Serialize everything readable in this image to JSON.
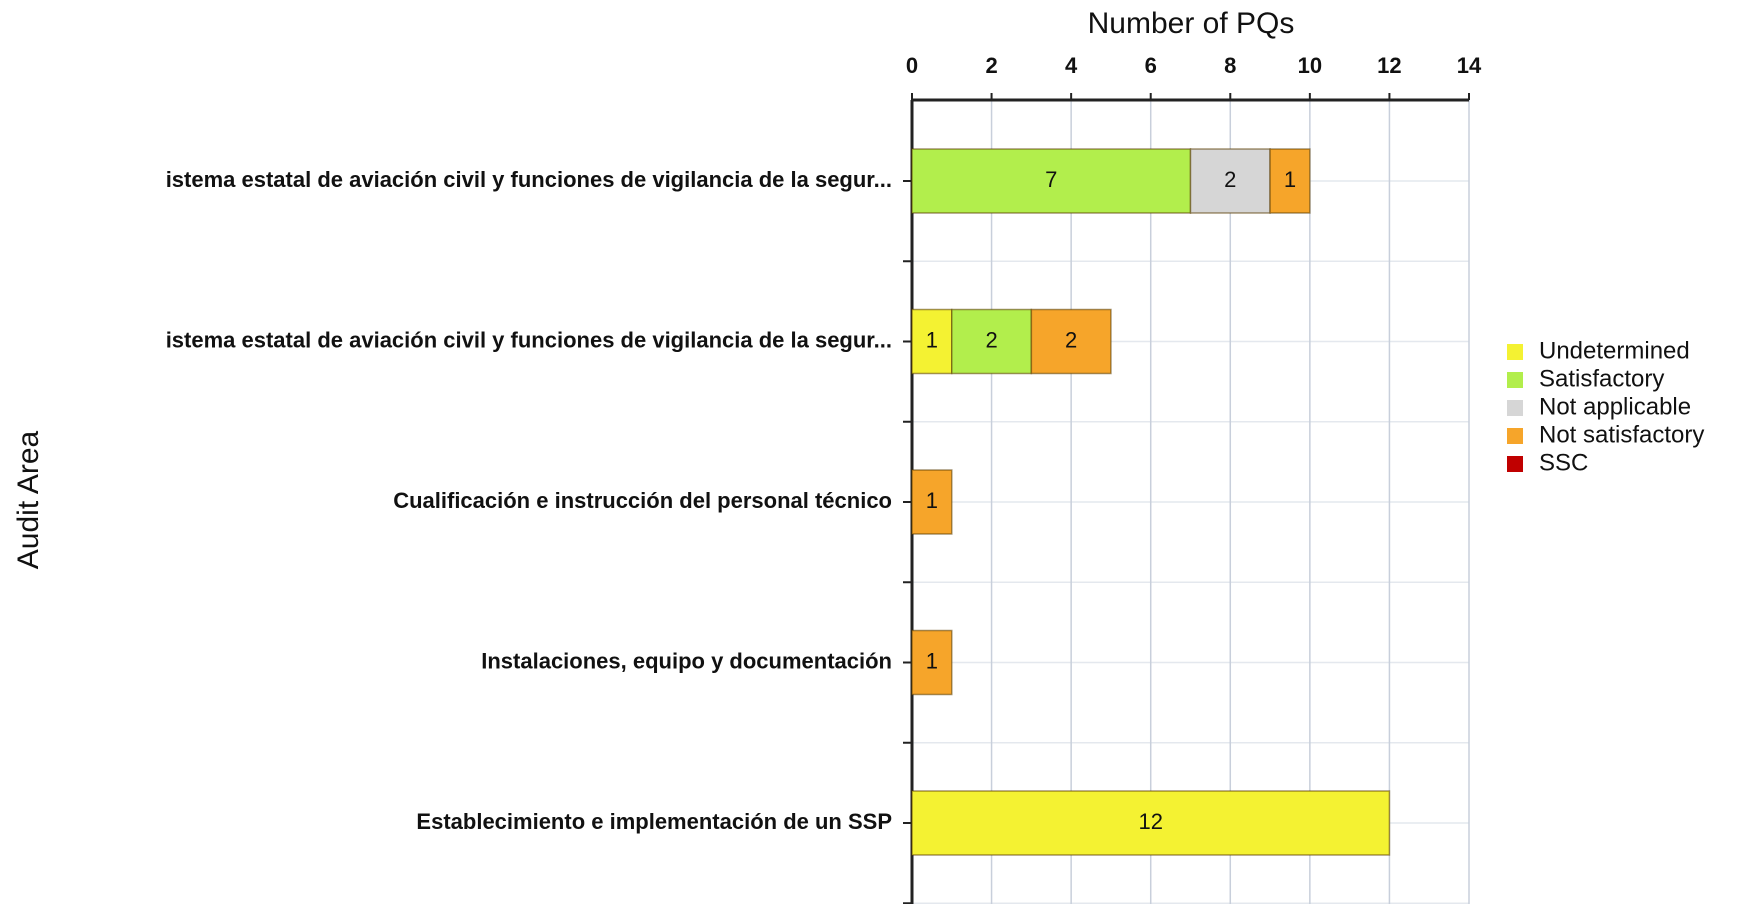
{
  "chart_data": {
    "type": "stacked_bar",
    "orientation": "horizontal",
    "title": "Number of PQs",
    "y_label": "Audit Area",
    "categories": [
      "istema estatal de aviación civil y funciones de vigilancia de la segur...",
      "istema estatal de aviación civil y funciones de vigilancia de la segur...",
      "Cualificación e instrucción del personal técnico",
      "Instalaciones, equipo y documentación",
      "Establecimiento e implementación de un SSP"
    ],
    "series": [
      {
        "name": "Undetermined",
        "color": "#f4f232",
        "values": [
          0,
          1,
          0,
          0,
          12
        ]
      },
      {
        "name": "Satisfactory",
        "color": "#b2ee4c",
        "values": [
          7,
          2,
          0,
          0,
          0
        ]
      },
      {
        "name": "Not applicable",
        "color": "#d6d6d6",
        "values": [
          2,
          0,
          0,
          0,
          0
        ]
      },
      {
        "name": "Not satisfactory",
        "color": "#f6a52a",
        "values": [
          1,
          2,
          1,
          1,
          0
        ]
      },
      {
        "name": "SSC",
        "color": "#c00000",
        "values": [
          0,
          0,
          0,
          0,
          0
        ]
      }
    ],
    "xlim": [
      0,
      14
    ],
    "xticks": [
      0,
      2,
      4,
      6,
      8,
      10,
      12,
      14
    ],
    "grid": true,
    "legend": "right"
  }
}
